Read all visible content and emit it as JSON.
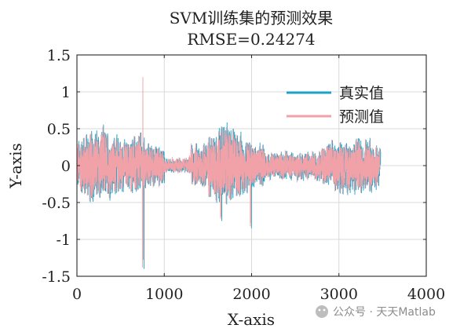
{
  "chart_data": {
    "type": "line",
    "title": "SVM训练集的预测效果",
    "subtitle": "RMSE=0.24274",
    "xlabel": "X-axis",
    "ylabel": "Y-axis",
    "xlim": [
      0,
      4000
    ],
    "ylim": [
      -1.5,
      1.5
    ],
    "xticks": [
      0,
      1000,
      2000,
      3000,
      4000
    ],
    "yticks": [
      1.5,
      1,
      0.5,
      0,
      -0.5,
      -1,
      -1.5
    ],
    "xtick_labels": [
      "0",
      "1000",
      "2000",
      "3000",
      "4000"
    ],
    "ytick_labels": [
      "1.5",
      "1",
      "0.5",
      "0",
      "-0.5",
      "-1",
      "-1.5"
    ],
    "grid": true,
    "legend_position": "top-right",
    "n_points": 3470,
    "series": [
      {
        "name": "真实值",
        "color": "#1aa3c6",
        "description_points": [
          [
            0,
            0.0
          ]
        ],
        "notable_points": [
          [
            760,
            1.23
          ],
          [
            760,
            -1.4
          ],
          [
            1650,
            0.95
          ],
          [
            1650,
            -0.75
          ],
          [
            1990,
            -0.85
          ]
        ]
      },
      {
        "name": "预测值",
        "color": "#f1a1a8",
        "notable_points": [
          [
            755,
            1.2
          ],
          [
            750,
            -1.38
          ],
          [
            1645,
            0.92
          ],
          [
            1645,
            -0.72
          ],
          [
            1985,
            -0.82
          ]
        ]
      }
    ]
  },
  "watermark": {
    "text": "公众号 · 天天Matlab"
  }
}
